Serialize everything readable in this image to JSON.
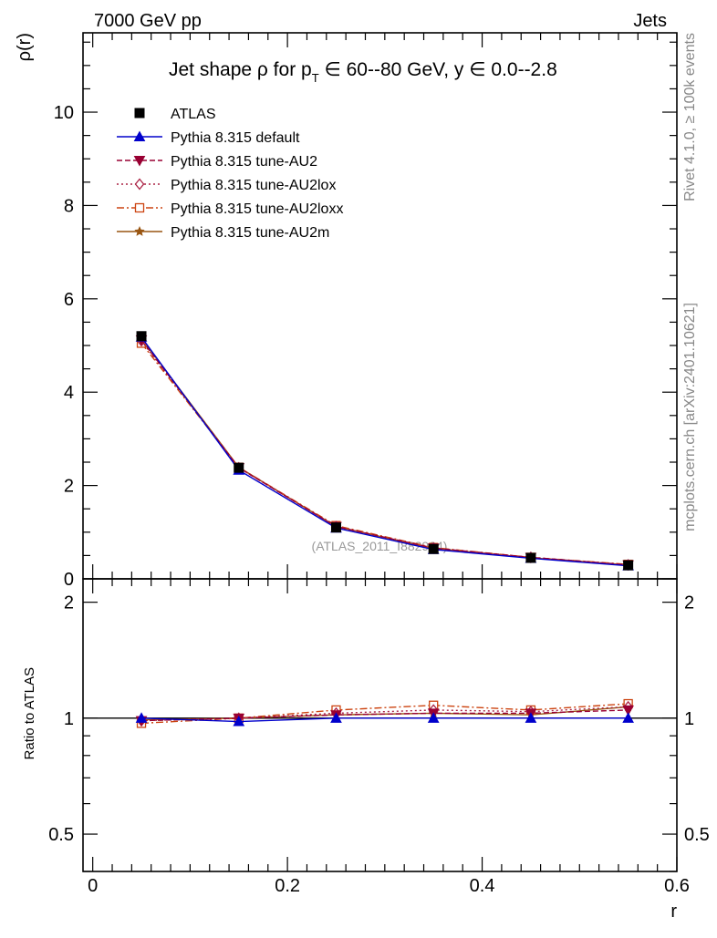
{
  "header": {
    "left_label": "7000 GeV pp",
    "right_label": "Jets"
  },
  "side_labels": {
    "rivet": "Rivet 4.1.0, ≥ 100k events",
    "mcplots": "mcplots.cern.ch [arXiv:2401.10621]"
  },
  "chart_data": [
    {
      "type": "line",
      "panel": "main",
      "title": "Jet shape ρ for p_T ∈ 60--80 GeV, y ∈ 0.0--2.8",
      "title_parts": {
        "prefix": "Jet shape ρ for p",
        "sub": "T",
        "suffix": " ∈ 60--80 GeV, y ∈ 0.0--2.8"
      },
      "xlabel": "r",
      "ylabel": "ρ(r)",
      "xlim": [
        -0.01,
        0.6
      ],
      "ylim": [
        0,
        11.7
      ],
      "y_ticks": [
        0,
        2,
        4,
        6,
        8,
        10
      ],
      "y_tick_labels": [
        "0",
        "2",
        "4",
        "6",
        "8",
        "10"
      ],
      "watermark": "(ATLAS_2011_I882984)",
      "legend_position": "top-left",
      "x": [
        0.05,
        0.15,
        0.25,
        0.35,
        0.45,
        0.55
      ],
      "series": [
        {
          "name": "ATLAS",
          "color": "#000000",
          "marker": "square-filled",
          "style": "none",
          "values": [
            5.2,
            2.38,
            1.1,
            0.64,
            0.45,
            0.29
          ]
        },
        {
          "name": "Pythia 8.315 default",
          "color": "#0000cc",
          "marker": "triangle-up-filled",
          "style": "solid",
          "values": [
            5.18,
            2.33,
            1.09,
            0.63,
            0.44,
            0.28
          ]
        },
        {
          "name": "Pythia 8.315 tune-AU2",
          "color": "#990033",
          "marker": "triangle-down-filled",
          "style": "dashed",
          "values": [
            5.12,
            2.38,
            1.12,
            0.66,
            0.46,
            0.3
          ]
        },
        {
          "name": "Pythia 8.315 tune-AU2lox",
          "color": "#aa2244",
          "marker": "diamond-open",
          "style": "dotted",
          "values": [
            5.1,
            2.38,
            1.12,
            0.66,
            0.46,
            0.3
          ]
        },
        {
          "name": "Pythia 8.315 tune-AU2loxx",
          "color": "#cc4411",
          "marker": "square-open",
          "style": "dashdot",
          "values": [
            5.05,
            2.39,
            1.14,
            0.67,
            0.46,
            0.31
          ]
        },
        {
          "name": "Pythia 8.315 tune-AU2m",
          "color": "#995511",
          "marker": "star-filled",
          "style": "solid",
          "values": [
            5.15,
            2.39,
            1.12,
            0.65,
            0.45,
            0.3
          ]
        }
      ]
    },
    {
      "type": "line",
      "panel": "ratio",
      "xlabel": "r",
      "ylabel": "Ratio to ATLAS",
      "xlim": [
        -0.01,
        0.6
      ],
      "ylim": [
        0.4,
        2.3
      ],
      "y_ticks": [
        0.5,
        1,
        2
      ],
      "y_tick_labels": [
        "0.5",
        "1",
        "2"
      ],
      "x_ticks": [
        0,
        0.2,
        0.4,
        0.6
      ],
      "x_tick_labels": [
        "0",
        "0.2",
        "0.4",
        "0.6"
      ],
      "reference_line": 1,
      "x": [
        0.05,
        0.15,
        0.25,
        0.35,
        0.45,
        0.55
      ],
      "series": [
        {
          "name": "Pythia 8.315 default",
          "values": [
            1.0,
            0.98,
            1.0,
            1.0,
            1.0,
            1.0
          ]
        },
        {
          "name": "Pythia 8.315 tune-AU2",
          "values": [
            0.985,
            1.0,
            1.02,
            1.03,
            1.03,
            1.05
          ]
        },
        {
          "name": "Pythia 8.315 tune-AU2lox",
          "values": [
            0.985,
            1.0,
            1.03,
            1.05,
            1.04,
            1.07
          ]
        },
        {
          "name": "Pythia 8.315 tune-AU2loxx",
          "values": [
            0.97,
            1.0,
            1.05,
            1.08,
            1.05,
            1.09
          ]
        },
        {
          "name": "Pythia 8.315 tune-AU2m",
          "values": [
            0.99,
            1.0,
            1.02,
            1.03,
            1.02,
            1.07
          ]
        }
      ]
    }
  ]
}
